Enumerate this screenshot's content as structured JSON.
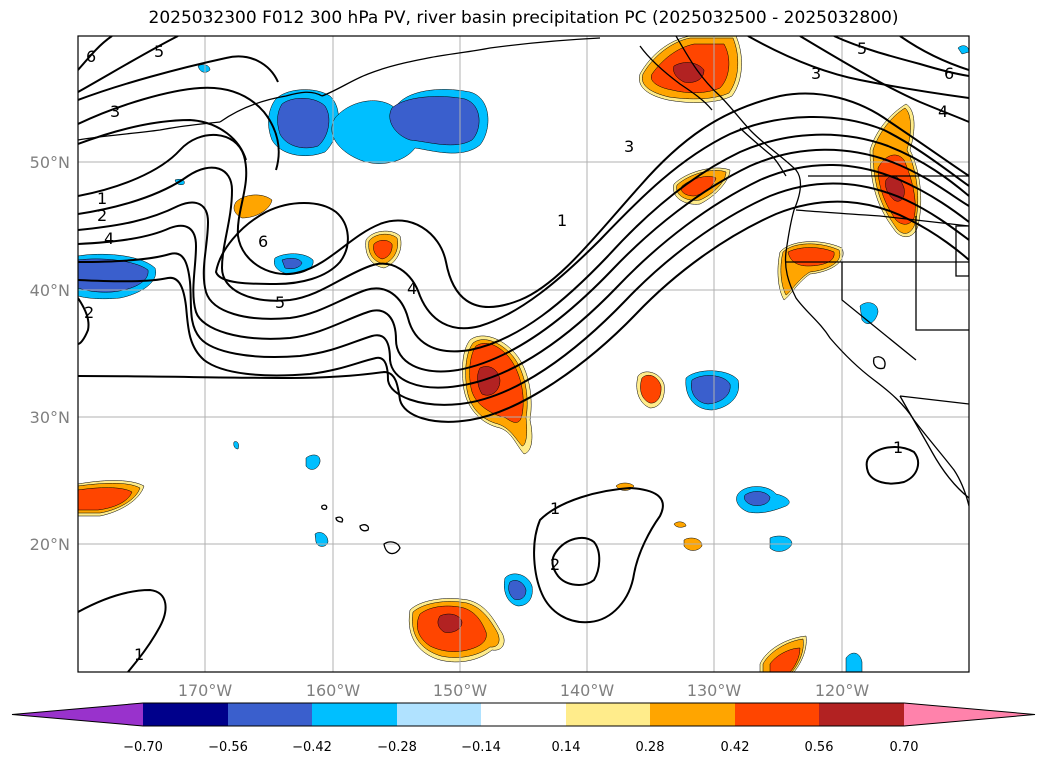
{
  "title": "2025032300 F012 300 hPa PV, river basin precipitation PC (2025032500 - 2025032800)",
  "map": {
    "lat_labels": [
      "50°N",
      "40°N",
      "30°N",
      "20°N"
    ],
    "lon_labels": [
      "170°W",
      "160°W",
      "150°W",
      "140°W",
      "130°W",
      "120°W"
    ],
    "gridline_color": "#b0b0b0"
  },
  "pv_contour_labels": [
    {
      "text": "6",
      "name": "pv-label-6-nw"
    },
    {
      "text": "5",
      "name": "pv-label-5-nw"
    },
    {
      "text": "3",
      "name": "pv-label-3-w"
    },
    {
      "text": "1",
      "name": "pv-label-1-w"
    },
    {
      "text": "2",
      "name": "pv-label-2-w"
    },
    {
      "text": "4",
      "name": "pv-label-4-w"
    },
    {
      "text": "6",
      "name": "pv-label-6-central"
    },
    {
      "text": "5",
      "name": "pv-label-5-central"
    },
    {
      "text": "4",
      "name": "pv-label-4-central"
    },
    {
      "text": "2",
      "name": "pv-label-2-sw"
    },
    {
      "text": "3",
      "name": "pv-label-3-ne"
    },
    {
      "text": "1",
      "name": "pv-label-1-ne"
    },
    {
      "text": "5",
      "name": "pv-label-5-ne"
    },
    {
      "text": "3",
      "name": "pv-label-3-ne2"
    },
    {
      "text": "6",
      "name": "pv-label-6-ne"
    },
    {
      "text": "4",
      "name": "pv-label-4-ne"
    },
    {
      "text": "1",
      "name": "pv-label-1-baja"
    },
    {
      "text": "1",
      "name": "pv-label-1-south"
    },
    {
      "text": "2",
      "name": "pv-label-2-south"
    },
    {
      "text": "1",
      "name": "pv-label-1-sw"
    }
  ],
  "colorbar": {
    "ticks": [
      "−0.70",
      "−0.56",
      "−0.42",
      "−0.28",
      "−0.14",
      "0.14",
      "0.28",
      "0.42",
      "0.56",
      "0.70"
    ],
    "colors": [
      "#9932cc",
      "#00008b",
      "#3a5fcd",
      "#00bfff",
      "#b0e2ff",
      "#ffffff",
      "#ffec8b",
      "#ffa500",
      "#ff4500",
      "#b22222",
      "#ff82ab"
    ]
  },
  "fill_colors": {
    "neg_strong": "#3a5fcd",
    "neg_mid": "#00bfff",
    "neg_weak": "#b0e2ff",
    "pos_weak": "#ffec8b",
    "pos_mid": "#ffa500",
    "pos_strong": "#ff4500",
    "pos_max": "#b22222"
  }
}
